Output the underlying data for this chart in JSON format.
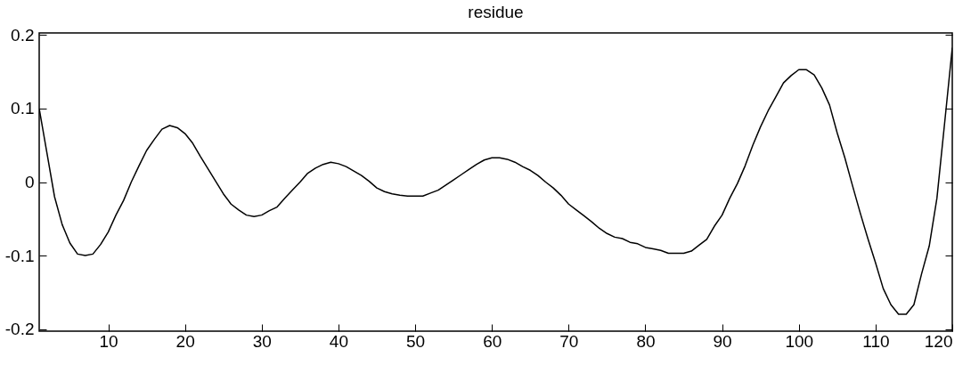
{
  "chart_data": {
    "type": "line",
    "title": "residue",
    "x": [
      1,
      2,
      3,
      4,
      5,
      6,
      7,
      8,
      9,
      10,
      11,
      12,
      13,
      14,
      15,
      16,
      17,
      18,
      19,
      20,
      21,
      22,
      23,
      24,
      25,
      26,
      27,
      28,
      29,
      30,
      31,
      32,
      33,
      34,
      35,
      36,
      37,
      38,
      39,
      40,
      41,
      42,
      43,
      44,
      45,
      46,
      47,
      48,
      49,
      50,
      51,
      52,
      53,
      54,
      55,
      56,
      57,
      58,
      59,
      60,
      61,
      62,
      63,
      64,
      65,
      66,
      67,
      68,
      69,
      70,
      71,
      72,
      73,
      74,
      75,
      76,
      77,
      78,
      79,
      80,
      81,
      82,
      83,
      84,
      85,
      86,
      87,
      88,
      89,
      90,
      91,
      92,
      93,
      94,
      95,
      96,
      97,
      98,
      99,
      100,
      101,
      102,
      103,
      104,
      105,
      106,
      107,
      108,
      109,
      110,
      111,
      112,
      113,
      114,
      115,
      116,
      117,
      118,
      119,
      120
    ],
    "series": [
      {
        "color": "#000000",
        "values": [
          0.1,
          0.04,
          -0.02,
          -0.058,
          -0.083,
          -0.098,
          -0.1,
          -0.098,
          -0.085,
          -0.068,
          -0.045,
          -0.025,
          0,
          0.022,
          0.043,
          0.058,
          0.072,
          0.077,
          0.074,
          0.066,
          0.053,
          0.035,
          0.018,
          0.001,
          -0.016,
          -0.03,
          -0.038,
          -0.045,
          -0.047,
          -0.045,
          -0.039,
          -0.034,
          -0.022,
          -0.011,
          0,
          0.012,
          0.019,
          0.024,
          0.027,
          0.025,
          0.021,
          0.015,
          0.009,
          0.001,
          -0.008,
          -0.013,
          -0.016,
          -0.018,
          -0.019,
          -0.019,
          -0.019,
          -0.015,
          -0.011,
          -0.004,
          0.003,
          0.01,
          0.017,
          0.024,
          0.03,
          0.033,
          0.033,
          0.031,
          0.027,
          0.021,
          0.016,
          0.009,
          0,
          -0.008,
          -0.018,
          -0.03,
          -0.038,
          -0.046,
          -0.054,
          -0.063,
          -0.07,
          -0.075,
          -0.077,
          -0.082,
          -0.084,
          -0.089,
          -0.091,
          -0.093,
          -0.097,
          -0.097,
          -0.097,
          -0.094,
          -0.086,
          -0.078,
          -0.06,
          -0.045,
          -0.022,
          -0.002,
          0.022,
          0.05,
          0.075,
          0.097,
          0.116,
          0.135,
          0.145,
          0.153,
          0.153,
          0.146,
          0.128,
          0.105,
          0.067,
          0.033,
          -0.005,
          -0.042,
          -0.077,
          -0.11,
          -0.145,
          -0.167,
          -0.18,
          -0.18,
          -0.167,
          -0.125,
          -0.087,
          -0.022,
          0.08,
          0.183
        ]
      }
    ],
    "xlim": [
      1,
      120
    ],
    "xticks": [
      10,
      20,
      30,
      40,
      50,
      60,
      70,
      80,
      90,
      100,
      110,
      120
    ],
    "ylim": [
      -0.203,
      0.203
    ],
    "yticks": [
      -0.2,
      -0.1,
      0,
      0.1,
      0.2
    ],
    "grid": false,
    "line_style": "solid",
    "marker": "none"
  }
}
